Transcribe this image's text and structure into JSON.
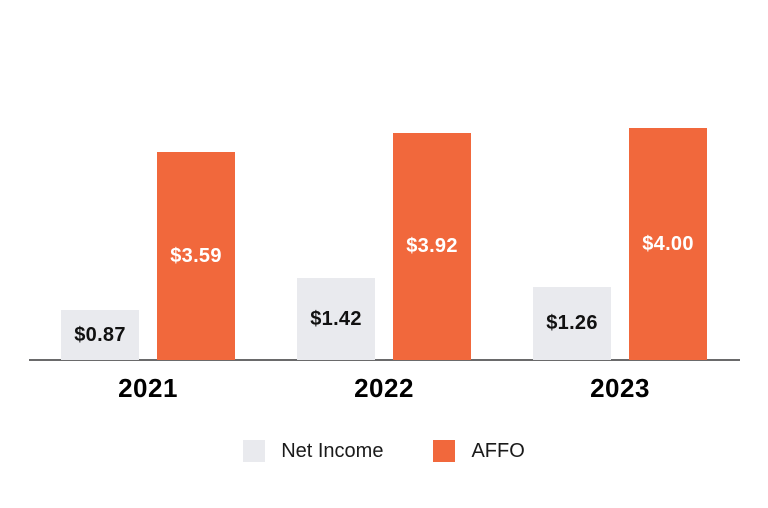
{
  "page": {
    "background": "#FFFFFF"
  },
  "chart_data": {
    "type": "bar",
    "title": "",
    "xlabel": "",
    "ylabel": "",
    "categories": [
      "2021",
      "2022",
      "2023"
    ],
    "series": [
      {
        "name": "Net Income",
        "values": [
          0.87,
          1.42,
          1.26
        ],
        "labels": [
          "$0.87",
          "$1.42",
          "$1.26"
        ],
        "color": "#E9EAEE",
        "label_color": "#111111"
      },
      {
        "name": "AFFO",
        "values": [
          3.59,
          3.92,
          4.0
        ],
        "labels": [
          "$3.59",
          "$3.92",
          "$4.00"
        ],
        "color": "#F1683C",
        "label_color": "#FFFFFF"
      }
    ],
    "ylim": [
      0,
      4.3
    ],
    "grid": false,
    "value_labels": "inside-center",
    "legend_position": "bottom",
    "axis_line_color": "#6A6A6B"
  },
  "legend": {
    "items": [
      {
        "label": "Net Income",
        "swatch_color": "#E9EAEE"
      },
      {
        "label": "AFFO",
        "swatch_color": "#F1683C"
      }
    ]
  },
  "colors": {
    "year_label": "#000000",
    "legend_text": "#1A1A1A",
    "background": "#FFFFFF"
  }
}
